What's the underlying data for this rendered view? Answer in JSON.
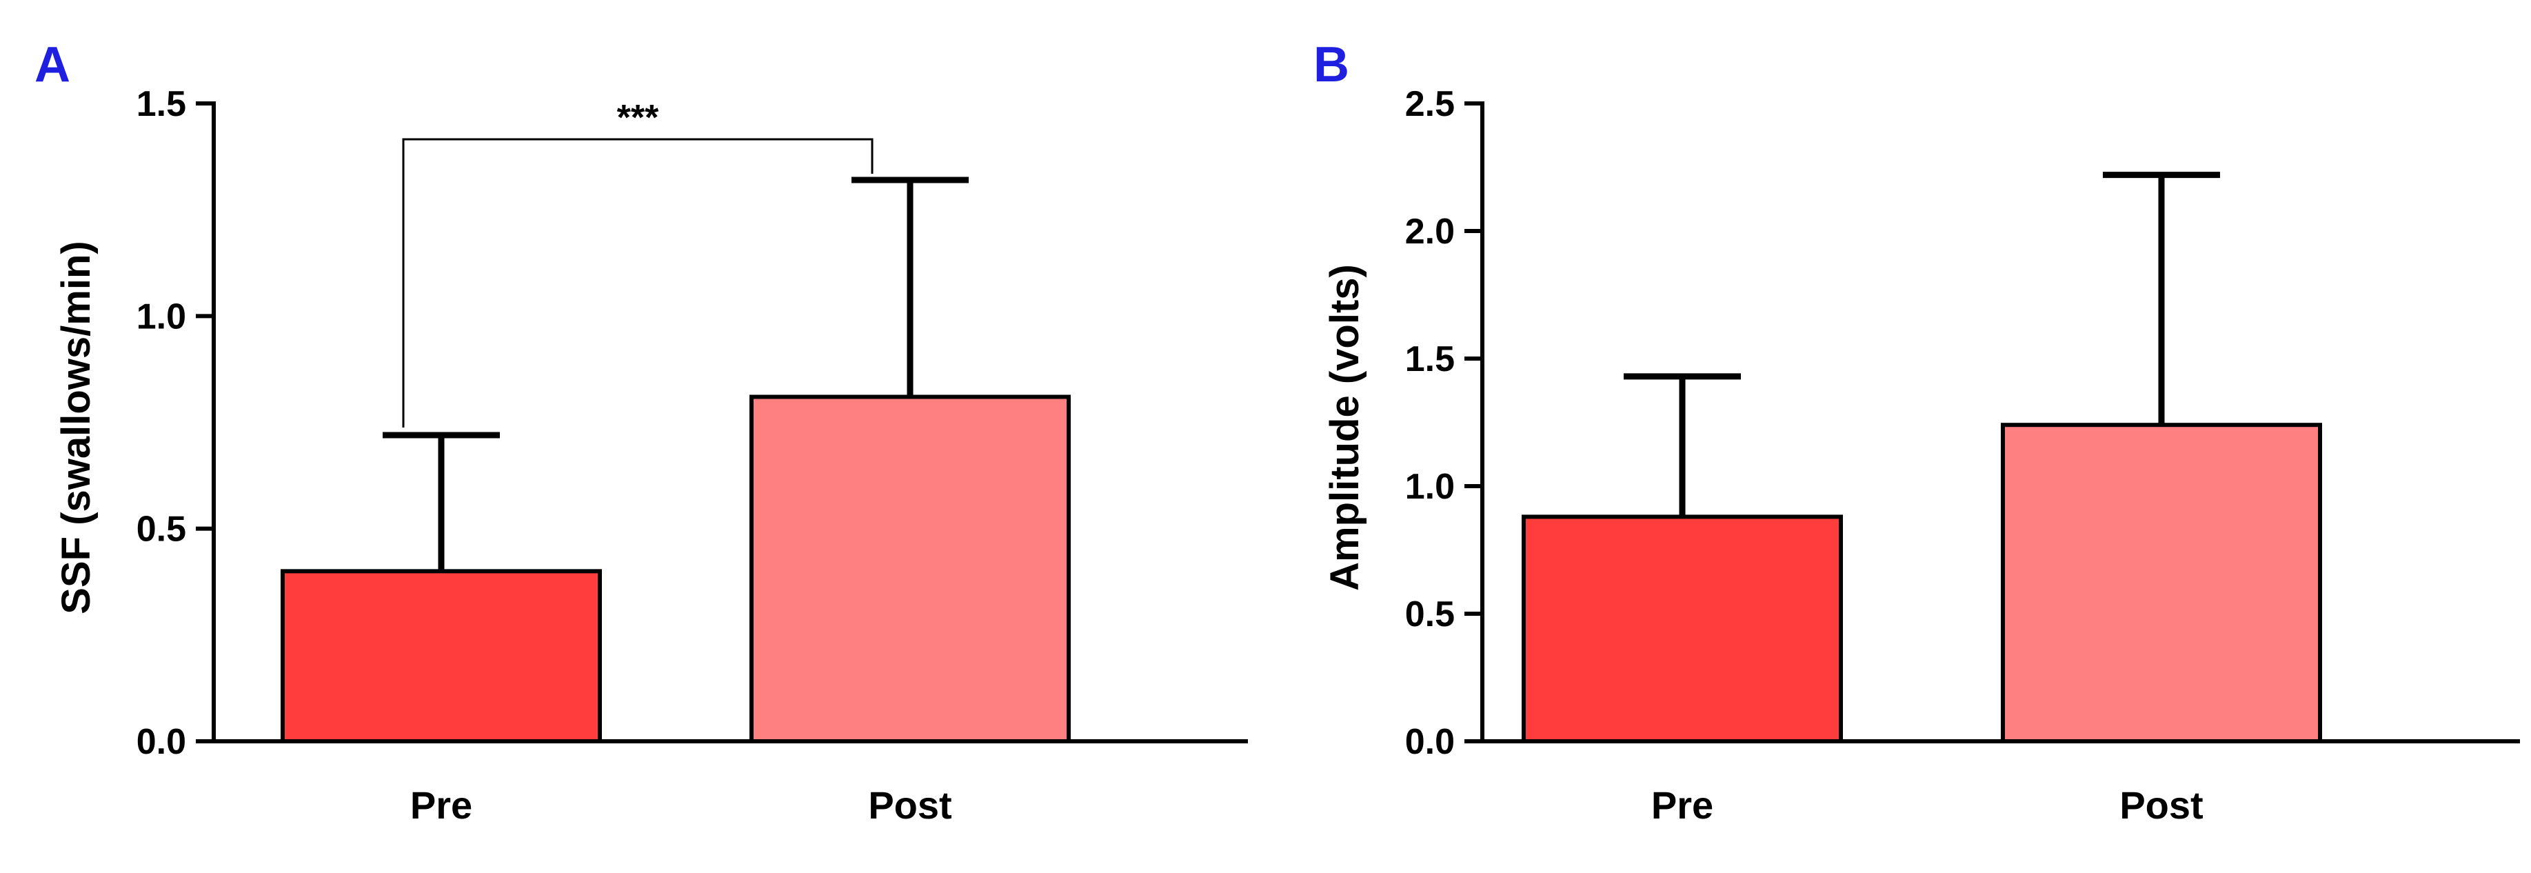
{
  "chart_data": [
    {
      "type": "bar",
      "panel": "A",
      "categories": [
        "Pre",
        "Post"
      ],
      "values": [
        0.4,
        0.81
      ],
      "error_upper": [
        0.72,
        1.32
      ],
      "colors": [
        "#ff3d3d",
        "#ff8080"
      ],
      "ylabel": "SSF (swallows/min)",
      "xlabel": "",
      "ylim": [
        0,
        1.5
      ],
      "yticks": [
        "0.0",
        "0.5",
        "1.0",
        "1.5"
      ],
      "annotation": {
        "text": "***",
        "between": [
          "Pre",
          "Post"
        ]
      }
    },
    {
      "type": "bar",
      "panel": "B",
      "categories": [
        "Pre",
        "Post"
      ],
      "values": [
        0.88,
        1.24
      ],
      "error_upper": [
        1.43,
        2.22
      ],
      "colors": [
        "#ff3d3d",
        "#ff8080"
      ],
      "ylabel": "Amplitude (volts)",
      "xlabel": "",
      "ylim": [
        0,
        2.5
      ],
      "yticks": [
        "0.0",
        "0.5",
        "1.0",
        "1.5",
        "2.0",
        "2.5"
      ]
    }
  ]
}
